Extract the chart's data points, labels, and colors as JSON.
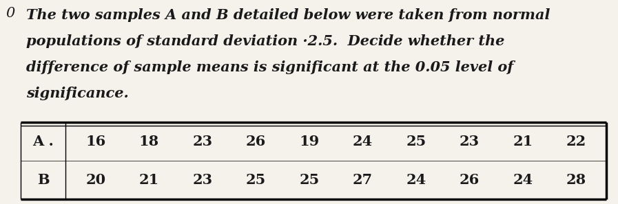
{
  "line1": "The two samples ",
  "line1_A": "A",
  "line1_and": " and ",
  "line1_B": "B",
  "line1_end": " detailed below were taken from normal",
  "line2": "populations of standard deviation ·2.5.  Decide whether the",
  "line3": "difference of sample means is significant at the 0.05 level of",
  "line4": "significance.",
  "row_A_label": "A .",
  "row_B_label": "B",
  "row_A_values": [
    16,
    18,
    23,
    26,
    19,
    24,
    25,
    23,
    21,
    22
  ],
  "row_B_values": [
    20,
    21,
    23,
    25,
    25,
    27,
    24,
    26,
    24,
    28
  ],
  "bg_color": "#f5f2ec",
  "text_color": "#1a1a1a",
  "number_prefix": "0",
  "fontsize_text": 15,
  "fontsize_table": 15
}
